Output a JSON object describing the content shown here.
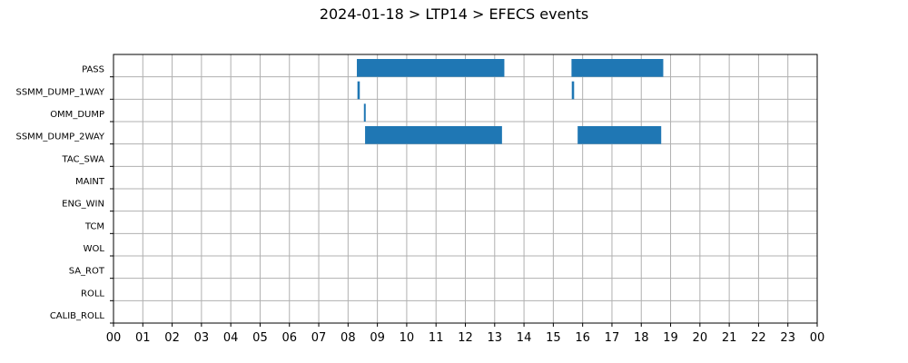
{
  "chart_data": {
    "type": "gantt",
    "title": "2024-01-18 > LTP14 > EFECS events",
    "xlabel": "",
    "ylabel": "",
    "xlim": [
      0,
      24
    ],
    "x_ticks": [
      "00",
      "01",
      "02",
      "03",
      "04",
      "05",
      "06",
      "07",
      "08",
      "09",
      "10",
      "11",
      "12",
      "13",
      "14",
      "15",
      "16",
      "17",
      "18",
      "19",
      "20",
      "21",
      "22",
      "23",
      "00"
    ],
    "grid": true,
    "bar_color": "#1f77b4",
    "categories": [
      "PASS",
      "SSMM_DUMP_1WAY",
      "OMM_DUMP",
      "SSMM_DUMP_2WAY",
      "TAC_SWA",
      "MAINT",
      "ENG_WIN",
      "TCM",
      "WOL",
      "SA_ROT",
      "ROLL",
      "CALIB_ROLL"
    ],
    "events": [
      {
        "category": "PASS",
        "start": 8.3,
        "end": 13.33
      },
      {
        "category": "PASS",
        "start": 15.62,
        "end": 18.75
      },
      {
        "category": "SSMM_DUMP_1WAY",
        "start": 8.32,
        "end": 8.4
      },
      {
        "category": "SSMM_DUMP_1WAY",
        "start": 15.63,
        "end": 15.71
      },
      {
        "category": "OMM_DUMP",
        "start": 8.54,
        "end": 8.6
      },
      {
        "category": "SSMM_DUMP_2WAY",
        "start": 8.58,
        "end": 13.25
      },
      {
        "category": "SSMM_DUMP_2WAY",
        "start": 15.83,
        "end": 18.68
      }
    ]
  }
}
